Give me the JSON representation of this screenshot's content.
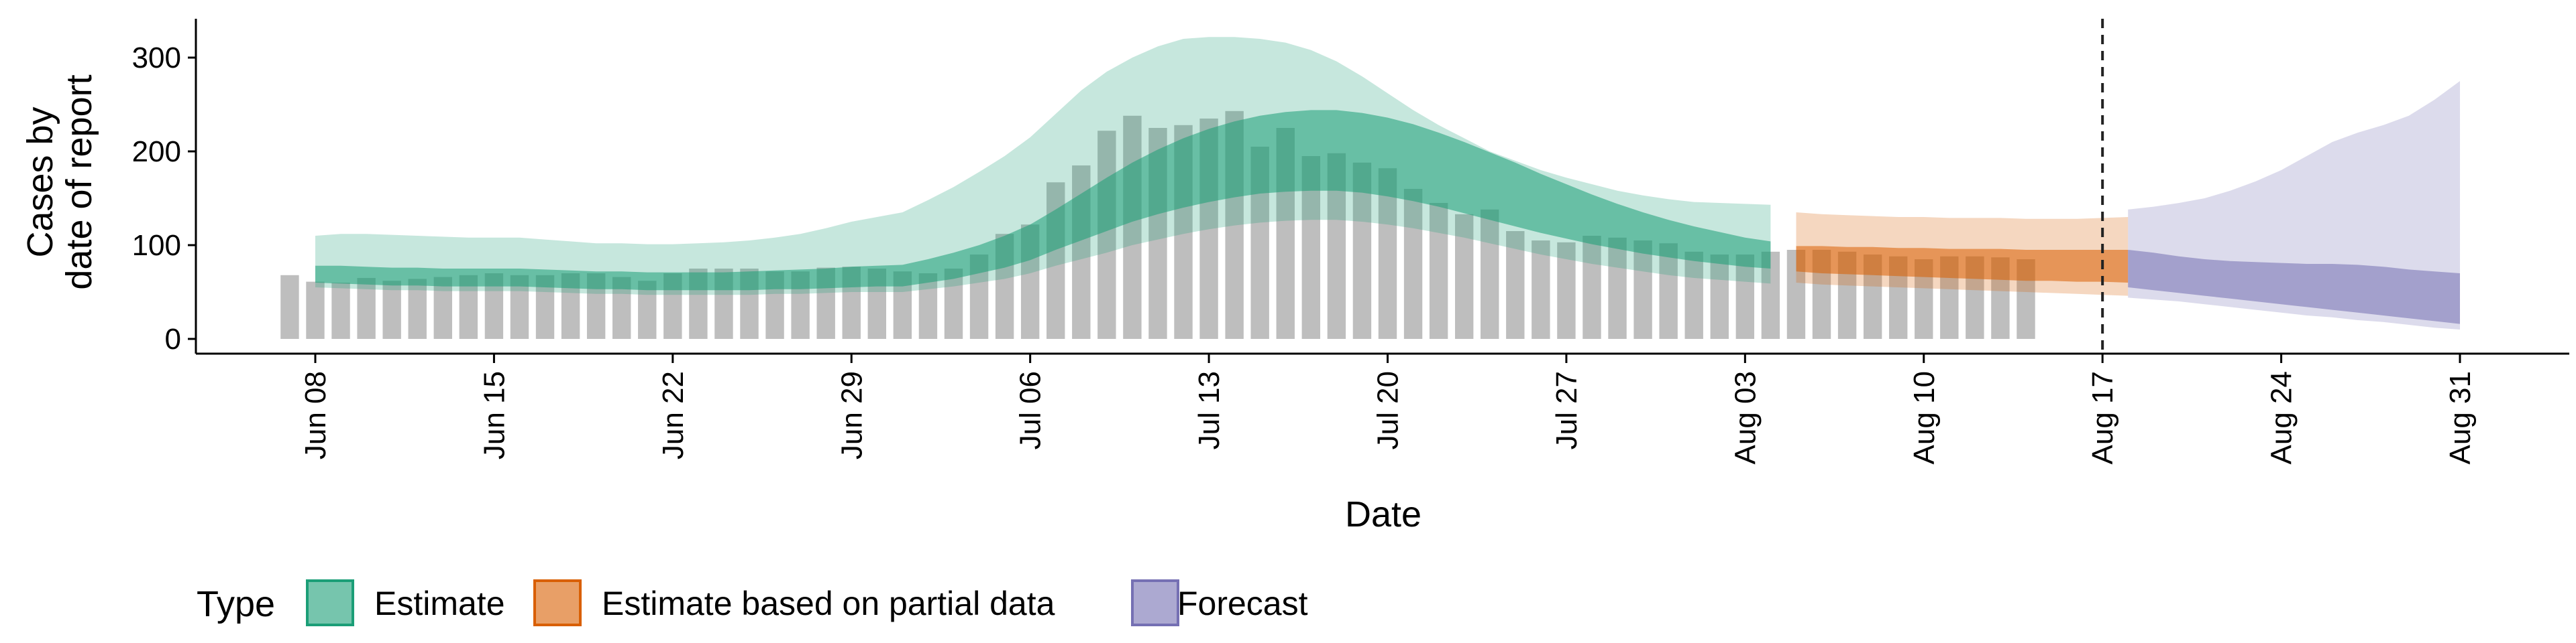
{
  "chart_data": {
    "type": "bar",
    "xlabel": "Date",
    "ylabel": [
      "Cases by",
      "date of report"
    ],
    "ylim": [
      0,
      340
    ],
    "y_ticks": [
      0,
      100,
      200,
      300
    ],
    "x_start": "2021-06-08",
    "x_end": "2021-08-31",
    "x_ticks": [
      {
        "date": "2021-06-08",
        "label": "Jun 08"
      },
      {
        "date": "2021-06-15",
        "label": "Jun 15"
      },
      {
        "date": "2021-06-22",
        "label": "Jun 22"
      },
      {
        "date": "2021-06-29",
        "label": "Jun 29"
      },
      {
        "date": "2021-07-06",
        "label": "Jul 06"
      },
      {
        "date": "2021-07-13",
        "label": "Jul 13"
      },
      {
        "date": "2021-07-20",
        "label": "Jul 20"
      },
      {
        "date": "2021-07-27",
        "label": "Jul 27"
      },
      {
        "date": "2021-08-03",
        "label": "Aug 03"
      },
      {
        "date": "2021-08-10",
        "label": "Aug 10"
      },
      {
        "date": "2021-08-17",
        "label": "Aug 17"
      },
      {
        "date": "2021-08-24",
        "label": "Aug 24"
      },
      {
        "date": "2021-08-31",
        "label": "Aug 31"
      }
    ],
    "forecast_start": "2021-08-17",
    "colors": {
      "bars": "#bebebe",
      "estimate": "#1b9e77",
      "partial": "#d95f02",
      "forecast": "#7570b3"
    },
    "legend": {
      "position": "bottom",
      "title": "Type",
      "items": [
        {
          "label": "Estimate",
          "color": "#1b9e77"
        },
        {
          "label": "Estimate based on partial data",
          "color": "#d95f02"
        },
        {
          "label": "Forecast",
          "color": "#7570b3"
        }
      ]
    },
    "observed_cases": {
      "start_date": "2021-06-07",
      "values": [
        68,
        61,
        60,
        65,
        62,
        64,
        66,
        68,
        70,
        68,
        68,
        70,
        70,
        66,
        62,
        70,
        75,
        75,
        75,
        72,
        72,
        76,
        77,
        75,
        72,
        70,
        75,
        90,
        112,
        122,
        167,
        185,
        222,
        238,
        225,
        228,
        235,
        243,
        205,
        225,
        195,
        198,
        188,
        182,
        160,
        145,
        133,
        138,
        115,
        105,
        103,
        110,
        108,
        105,
        102,
        93,
        90,
        90,
        93,
        95,
        95,
        93,
        90,
        88,
        85,
        88,
        88,
        87,
        85
      ]
    },
    "series": [
      {
        "name": "Estimate",
        "start_date": "2021-06-08",
        "lower90": [
          55,
          54,
          53,
          52,
          52,
          51,
          51,
          51,
          51,
          50,
          49,
          48,
          48,
          47,
          47,
          47,
          47,
          47,
          48,
          48,
          49,
          50,
          50,
          50,
          53,
          56,
          60,
          64,
          70,
          78,
          85,
          92,
          100,
          106,
          112,
          117,
          121,
          124,
          126,
          127,
          127,
          125,
          122,
          118,
          113,
          108,
          102,
          96,
          90,
          85,
          80,
          76,
          72,
          68,
          65,
          63,
          61,
          59
        ],
        "lower50": [
          60,
          59,
          58,
          57,
          57,
          56,
          56,
          56,
          56,
          55,
          54,
          53,
          53,
          52,
          52,
          52,
          52,
          52,
          53,
          53,
          54,
          55,
          56,
          56,
          60,
          64,
          70,
          76,
          84,
          95,
          105,
          115,
          125,
          133,
          140,
          146,
          151,
          155,
          157,
          158,
          158,
          156,
          152,
          147,
          141,
          134,
          127,
          120,
          113,
          107,
          101,
          96,
          91,
          87,
          83,
          80,
          77,
          75
        ],
        "upper50": [
          78,
          78,
          77,
          76,
          76,
          75,
          75,
          75,
          75,
          74,
          73,
          72,
          72,
          71,
          71,
          71,
          71,
          72,
          73,
          74,
          75,
          77,
          78,
          79,
          85,
          92,
          100,
          110,
          122,
          138,
          155,
          172,
          188,
          202,
          214,
          224,
          232,
          238,
          242,
          244,
          244,
          241,
          236,
          229,
          220,
          210,
          199,
          188,
          176,
          165,
          154,
          144,
          135,
          127,
          120,
          114,
          108,
          104
        ],
        "upper90": [
          110,
          112,
          112,
          111,
          110,
          109,
          108,
          108,
          108,
          106,
          104,
          102,
          102,
          101,
          101,
          102,
          103,
          105,
          108,
          112,
          118,
          125,
          130,
          135,
          148,
          162,
          178,
          195,
          215,
          240,
          265,
          285,
          300,
          312,
          320,
          322,
          322,
          320,
          316,
          308,
          296,
          280,
          262,
          244,
          228,
          214,
          200,
          190,
          180,
          172,
          165,
          158,
          153,
          149,
          146,
          145,
          144,
          143
        ]
      },
      {
        "name": "Estimate based on partial data",
        "start_date": "2021-08-05",
        "lower90": [
          60,
          58,
          57,
          56,
          55,
          54,
          53,
          52,
          51,
          50,
          49,
          48,
          47,
          46
        ],
        "lower50": [
          72,
          70,
          69,
          68,
          67,
          66,
          65,
          64,
          63,
          62,
          62,
          61,
          61,
          60
        ],
        "upper50": [
          99,
          99,
          98,
          98,
          97,
          97,
          96,
          96,
          96,
          95,
          95,
          95,
          95,
          95
        ],
        "upper90": [
          135,
          133,
          132,
          131,
          130,
          130,
          129,
          129,
          129,
          128,
          128,
          128,
          129,
          130
        ]
      },
      {
        "name": "Forecast",
        "start_date": "2021-08-18",
        "lower90": [
          44,
          42,
          40,
          37,
          34,
          31,
          28,
          25,
          23,
          20,
          18,
          15,
          12,
          10
        ],
        "lower50": [
          55,
          52,
          49,
          46,
          43,
          40,
          37,
          34,
          31,
          28,
          25,
          22,
          19,
          16
        ],
        "upper50": [
          95,
          92,
          88,
          85,
          83,
          82,
          81,
          80,
          80,
          79,
          77,
          74,
          72,
          70
        ],
        "upper90": [
          138,
          141,
          145,
          150,
          158,
          168,
          180,
          195,
          210,
          220,
          228,
          238,
          255,
          275
        ]
      }
    ]
  }
}
